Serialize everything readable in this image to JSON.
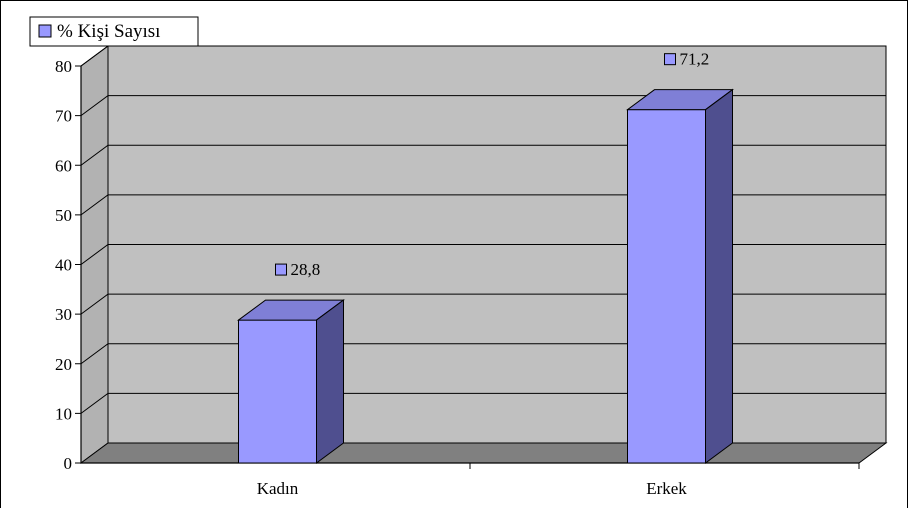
{
  "colors": {
    "bar_front": "#9999ff",
    "bar_top": "#7f7fd6",
    "bar_side": "#4f4f8f",
    "back_wall": "#c0c0c0",
    "side_wall": "#b2b2b2",
    "floor": "#808080",
    "text": "#000000"
  },
  "chart_data": {
    "type": "bar",
    "style": "3d-column",
    "categories": [
      "Kadın",
      "Erkek"
    ],
    "series": [
      {
        "name": "% Kişi Sayısı",
        "values": [
          28.8,
          71.2
        ]
      }
    ],
    "data_labels": [
      "28,8",
      "71,2"
    ],
    "ylim": [
      0,
      80
    ],
    "yticks": [
      0,
      10,
      20,
      30,
      40,
      50,
      60,
      70,
      80
    ],
    "grid": true,
    "legend": "top-left"
  }
}
